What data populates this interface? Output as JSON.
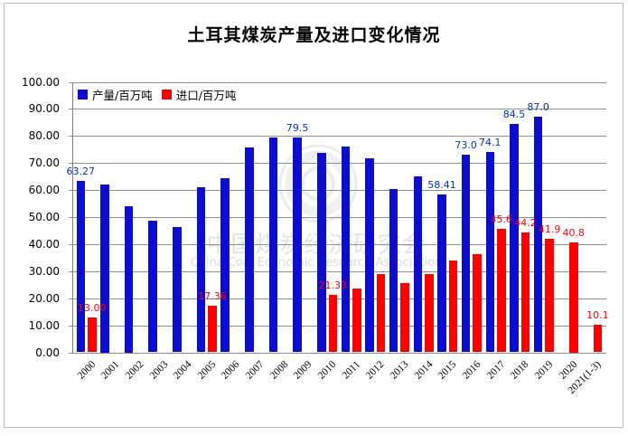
{
  "watermark": {
    "line1": "中国煤炭经济研究会",
    "line2": "China Coal Economic Research Association"
  },
  "chart_data": {
    "type": "bar",
    "title": "土耳其煤炭产量及进口变化情况",
    "categories": [
      "2000",
      "2001",
      "2002",
      "2003",
      "2004",
      "2005",
      "2006",
      "2007",
      "2008",
      "2009",
      "2010",
      "2011",
      "2012",
      "2013",
      "2014",
      "2015",
      "2016",
      "2017",
      "2018",
      "2019",
      "2020",
      "2021(1-3)"
    ],
    "series": [
      {
        "name": "产量/百万吨",
        "color": "#0d0dce",
        "values": [
          63.27,
          62.2,
          54.0,
          48.7,
          46.4,
          60.9,
          64.3,
          75.7,
          79.4,
          79.5,
          73.6,
          76.0,
          71.6,
          60.4,
          65.0,
          58.41,
          73.0,
          74.1,
          84.5,
          87.0,
          null,
          null
        ],
        "labels": {
          "0": "63.27",
          "9": "79.5",
          "15": "58.41",
          "16": "73.0",
          "17": "74.1",
          "18": "84.5",
          "19": "87.0"
        }
      },
      {
        "name": "进口/百万吨",
        "color": "#ff0000",
        "values": [
          13.0,
          null,
          null,
          null,
          null,
          17.36,
          null,
          null,
          null,
          null,
          21.33,
          23.6,
          28.8,
          25.7,
          29.0,
          33.9,
          36.2,
          45.6,
          44.2,
          41.9,
          40.8,
          10.1
        ],
        "labels": {
          "0": "13.00",
          "5": "17.36",
          "10": "21.33",
          "17": "45.6",
          "18": "44.2",
          "19": "41.9",
          "20": "40.8",
          "21": "10.1"
        }
      }
    ],
    "xlabel": "",
    "ylabel": "",
    "ylim": [
      0,
      100
    ],
    "ytick_step": 10,
    "ytick_labels": [
      "0.00",
      "10.00",
      "20.00",
      "30.00",
      "40.00",
      "50.00",
      "60.00",
      "70.00",
      "80.00",
      "90.00",
      "100.00"
    ],
    "grid": true,
    "legend_position": "top-left-inside"
  }
}
